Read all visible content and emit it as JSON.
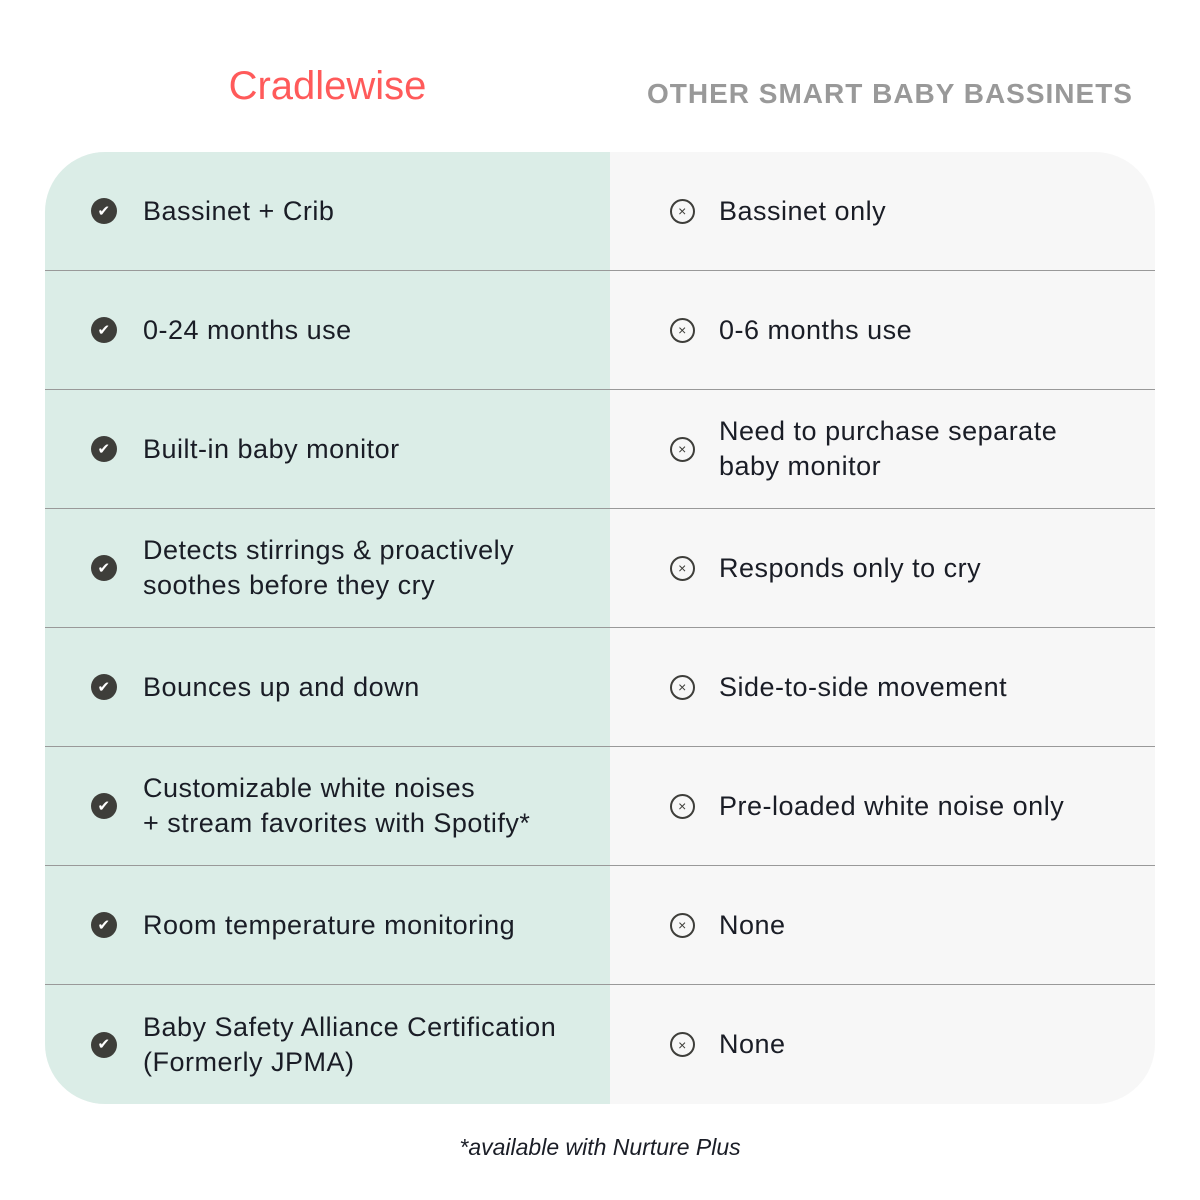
{
  "header": {
    "brand": "Cradlewise",
    "other": "OTHER SMART BABY BASSINETS"
  },
  "rows": [
    {
      "cradlewise": "Bassinet + Crib",
      "other": "Bassinet only"
    },
    {
      "cradlewise": "0-24 months use",
      "other": "0-6 months use"
    },
    {
      "cradlewise": "Built-in baby monitor",
      "other": "Need to purchase separate\nbaby monitor"
    },
    {
      "cradlewise": "Detects stirrings & proactively\nsoothes before they cry",
      "other": "Responds only to cry"
    },
    {
      "cradlewise": "Bounces up and down",
      "other": "Side-to-side movement"
    },
    {
      "cradlewise": "Customizable white noises\n+ stream favorites with Spotify*",
      "other": "Pre-loaded white noise only"
    },
    {
      "cradlewise": "Room temperature monitoring",
      "other": "None"
    },
    {
      "cradlewise": "Baby Safety Alliance Certification\n(Formerly JPMA)",
      "other": "None"
    }
  ],
  "footnote": "*available with Nurture Plus",
  "colors": {
    "brand": "#ff5a5a",
    "cradlewise_bg": "#dbede7",
    "other_bg": "#f7f7f7"
  },
  "icons": {
    "cradlewise": "check-circle-icon",
    "other": "x-circle-icon"
  }
}
